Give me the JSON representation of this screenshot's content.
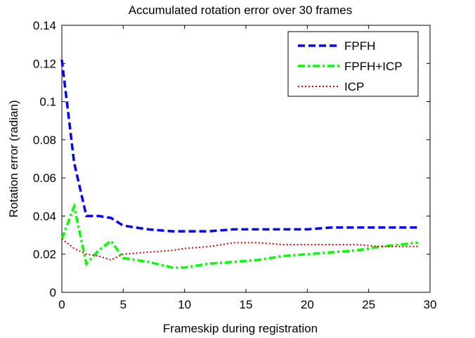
{
  "chart_data": {
    "type": "line",
    "title": "Accumulated rotation error over 30 frames",
    "xlabel": "Frameskip during registration",
    "ylabel": "Rotation error (radian)",
    "xlim": [
      0,
      30
    ],
    "ylim": [
      0,
      0.14
    ],
    "xticks": [
      0,
      5,
      10,
      15,
      20,
      25,
      30
    ],
    "yticks": [
      0,
      0.02,
      0.04,
      0.06,
      0.08,
      0.1,
      0.12,
      0.14
    ],
    "xtick_labels": [
      "0",
      "5",
      "10",
      "15",
      "20",
      "25",
      "30"
    ],
    "ytick_labels": [
      "0",
      "0.02",
      "0.04",
      "0.06",
      "0.08",
      "0.1",
      "0.12",
      "0.14"
    ],
    "grid": false,
    "legend_position": "top-right",
    "series": [
      {
        "name": "FPFH",
        "color": "#0000ff",
        "line_style": "dashed",
        "x": [
          0,
          1,
          2,
          3,
          4,
          5,
          7,
          9,
          10,
          12,
          14,
          16,
          18,
          20,
          22,
          24,
          26,
          29
        ],
        "y": [
          0.122,
          0.068,
          0.04,
          0.04,
          0.039,
          0.035,
          0.033,
          0.032,
          0.032,
          0.032,
          0.033,
          0.033,
          0.033,
          0.033,
          0.034,
          0.034,
          0.034,
          0.034
        ]
      },
      {
        "name": "FPFH+ICP",
        "color": "#00ff00",
        "line_style": "dash-dot",
        "x": [
          0,
          1,
          2,
          3,
          4,
          5,
          7,
          9,
          10,
          12,
          14,
          16,
          18,
          20,
          22,
          24,
          26,
          29
        ],
        "y": [
          0.028,
          0.045,
          0.015,
          0.022,
          0.027,
          0.018,
          0.016,
          0.013,
          0.013,
          0.015,
          0.016,
          0.017,
          0.019,
          0.02,
          0.021,
          0.022,
          0.024,
          0.026
        ]
      },
      {
        "name": "ICP",
        "color": "#cc0000",
        "line_style": "dotted",
        "x": [
          0,
          1,
          2,
          3,
          4,
          5,
          7,
          9,
          10,
          12,
          14,
          16,
          18,
          20,
          22,
          24,
          26,
          29
        ],
        "y": [
          0.028,
          0.023,
          0.02,
          0.019,
          0.017,
          0.02,
          0.021,
          0.022,
          0.023,
          0.024,
          0.026,
          0.026,
          0.025,
          0.025,
          0.025,
          0.025,
          0.024,
          0.024
        ]
      }
    ]
  }
}
